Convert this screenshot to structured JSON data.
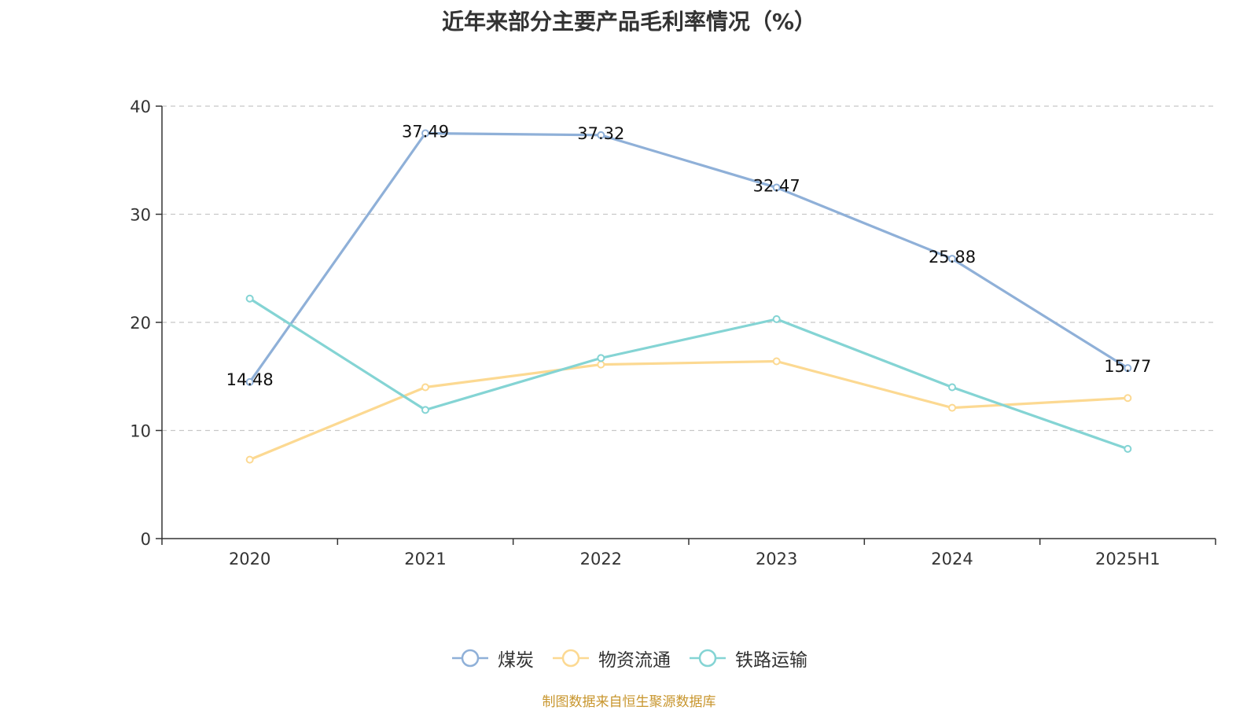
{
  "chart_data": {
    "type": "line",
    "title": "近年来部分主要产品毛利率情况（%）",
    "categories": [
      "2020",
      "2021",
      "2022",
      "2023",
      "2024",
      "2025H1"
    ],
    "ylim": [
      0,
      40
    ],
    "yticks": [
      0,
      10,
      20,
      30,
      40
    ],
    "grid": true,
    "legend_position": "bottom",
    "series": [
      {
        "name": "煤炭",
        "color": "#8fb0d8",
        "values": [
          14.48,
          37.49,
          37.32,
          32.47,
          25.88,
          15.77
        ],
        "show_labels": true
      },
      {
        "name": "物资流通",
        "color": "#fcd992",
        "values": [
          7.3,
          14.0,
          16.1,
          16.4,
          12.1,
          13.0
        ],
        "show_labels": false
      },
      {
        "name": "铁路运输",
        "color": "#84d4d4",
        "values": [
          22.2,
          11.9,
          16.7,
          20.3,
          14.0,
          8.3
        ],
        "show_labels": false
      }
    ]
  },
  "footer": {
    "source": "制图数据来自恒生聚源数据库"
  }
}
